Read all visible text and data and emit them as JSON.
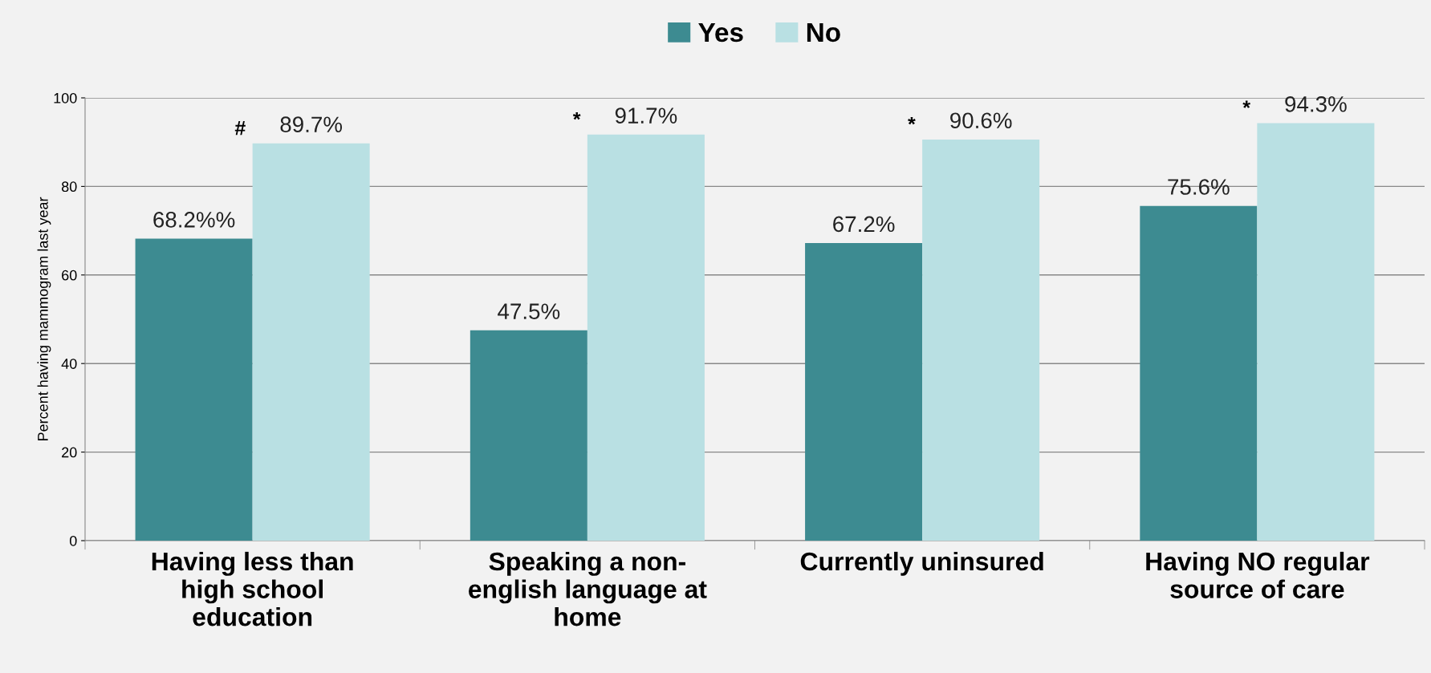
{
  "chart_data": {
    "type": "bar",
    "ylabel": "Percent having mammogram last year",
    "categories": [
      "Having less than high school education",
      "Speaking a non-english language at home",
      "Currently uninsured",
      "Having NO regular source of care"
    ],
    "series": [
      {
        "name": "Yes",
        "color": "#3d8b91",
        "values": [
          68.2,
          47.5,
          67.2,
          75.6
        ],
        "value_labels": [
          "68.2%%",
          "47.5%",
          "67.2%",
          "75.6%"
        ]
      },
      {
        "name": "No",
        "color": "#b9e0e3",
        "values": [
          89.7,
          91.7,
          90.6,
          94.3
        ],
        "value_labels": [
          "89.7%",
          "91.7%",
          "90.6%",
          "94.3%"
        ]
      }
    ],
    "annotations": [
      {
        "text": "#",
        "x": "Having less than high school education",
        "y": 89.7
      },
      {
        "text": "*",
        "x": "Speaking a non-english language at home",
        "y": 91.7
      },
      {
        "text": "*",
        "x": "Currently uninsured",
        "y": 90.6
      },
      {
        "text": "*",
        "x": "Having NO regular source of care",
        "y": 94.3
      }
    ],
    "ylim": [
      0,
      100
    ],
    "yticks": [
      0,
      20,
      40,
      60,
      80,
      100
    ],
    "grid": "y",
    "legend": "top"
  }
}
